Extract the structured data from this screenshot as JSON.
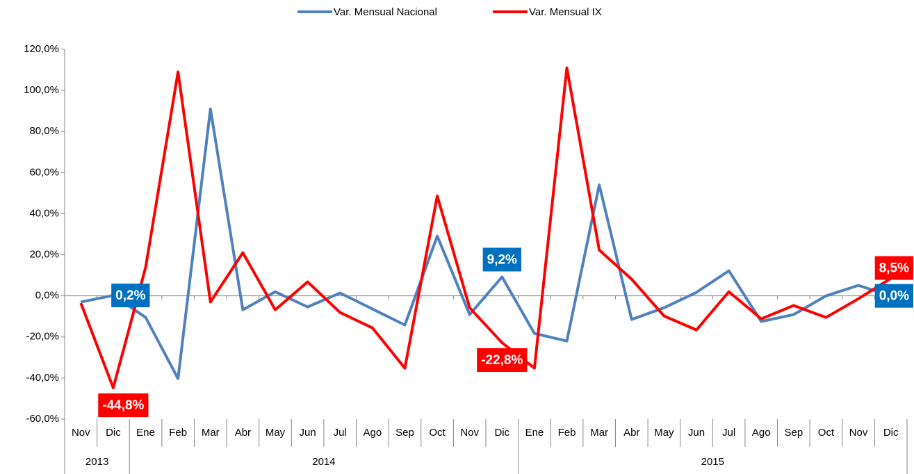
{
  "chart_data": {
    "type": "line",
    "categories": [
      "Nov",
      "Dic",
      "Ene",
      "Feb",
      "Mar",
      "Abr",
      "May",
      "Jun",
      "Jul",
      "Ago",
      "Sep",
      "Oct",
      "Nov",
      "Dic",
      "Ene",
      "Feb",
      "Mar",
      "Abr",
      "May",
      "Jun",
      "Jul",
      "Ago",
      "Sep",
      "Oct",
      "Nov",
      "Dic"
    ],
    "x_groups": [
      {
        "name": "2013",
        "count": 2
      },
      {
        "name": "2014",
        "count": 12
      },
      {
        "name": "2015",
        "count": 12
      }
    ],
    "series": [
      {
        "name": "Var. Mensual Nacional",
        "color": "#4f81bd",
        "values": [
          -3.0,
          0.2,
          -10.5,
          -40.3,
          91.0,
          -6.8,
          2.0,
          -5.4,
          1.4,
          -6.4,
          -14.2,
          29.1,
          -9.1,
          9.2,
          -18.3,
          -22.0,
          54.0,
          -11.5,
          -5.8,
          1.7,
          12.2,
          -12.5,
          -9.1,
          0.0,
          5.1,
          0.0
        ],
        "value_labels": [
          null,
          "0,2%",
          null,
          null,
          null,
          null,
          null,
          null,
          null,
          null,
          null,
          null,
          null,
          "9,2%",
          null,
          null,
          null,
          null,
          null,
          null,
          null,
          null,
          null,
          null,
          null,
          "0,0%"
        ],
        "label_color": "#0070c0"
      },
      {
        "name": "Var. Mensual IX",
        "color": "#ff0000",
        "values": [
          -3.5,
          -44.8,
          13.9,
          109.0,
          -3.0,
          21.0,
          -6.8,
          6.8,
          -8.1,
          -15.6,
          -35.2,
          48.6,
          -5.8,
          -22.8,
          -35.2,
          111.0,
          22.3,
          8.1,
          -9.8,
          -16.6,
          2.0,
          -11.2,
          -4.7,
          -10.5,
          -1.4,
          8.5
        ],
        "value_labels": [
          null,
          "-44,8%",
          null,
          null,
          null,
          null,
          null,
          null,
          null,
          null,
          null,
          null,
          null,
          "-22,8%",
          null,
          null,
          null,
          null,
          null,
          null,
          null,
          null,
          null,
          null,
          null,
          "8,5%"
        ],
        "label_color": "#ff0000"
      }
    ],
    "ylim": [
      -60,
      120
    ],
    "yticks": [
      {
        "value": -60,
        "label": "-60,0%"
      },
      {
        "value": -40,
        "label": "-40,0%"
      },
      {
        "value": -20,
        "label": "-20,0%"
      },
      {
        "value": 0,
        "label": "0,0%"
      },
      {
        "value": 20,
        "label": "20,0%"
      },
      {
        "value": 40,
        "label": "40,0%"
      },
      {
        "value": 60,
        "label": "60,0%"
      },
      {
        "value": 80,
        "label": "80,0%"
      },
      {
        "value": 100,
        "label": "100,0%"
      },
      {
        "value": 120,
        "label": "120,0%"
      }
    ],
    "legend": "top",
    "grid": false
  }
}
